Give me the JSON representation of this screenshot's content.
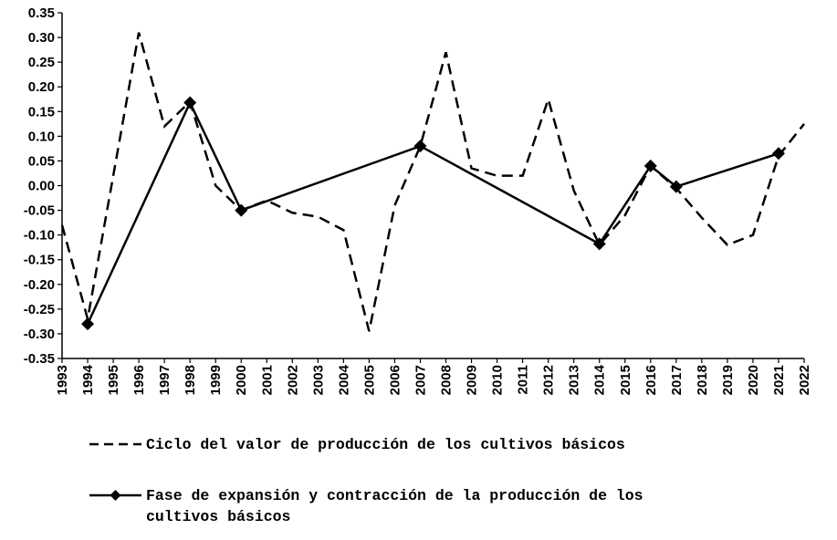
{
  "chart_data": {
    "type": "line",
    "title": "",
    "xlabel": "",
    "ylabel": "",
    "ylim": [
      -0.35,
      0.35
    ],
    "y_ticks": [
      "0.35",
      "0.30",
      "0.25",
      "0.20",
      "0.15",
      "0.10",
      "0.05",
      "0.00",
      "-0.05",
      "-0.10",
      "-0.15",
      "-0.20",
      "-0.25",
      "-0.30",
      "-0.35"
    ],
    "x": [
      "1993",
      "1994",
      "1995",
      "1996",
      "1997",
      "1998",
      "1999",
      "2000",
      "2001",
      "2002",
      "2003",
      "2004",
      "2005",
      "2006",
      "2007",
      "2008",
      "2009",
      "2010",
      "2011",
      "2012",
      "2013",
      "2014",
      "2015",
      "2016",
      "2017",
      "2018",
      "2019",
      "2020",
      "2021",
      "2022"
    ],
    "grid": false,
    "legend_position": "bottom",
    "series": [
      {
        "name": "Ciclo del valor de producción de los cultivos básicos",
        "style": "dashed",
        "values": [
          -0.08,
          -0.27,
          0.02,
          0.31,
          0.12,
          0.17,
          0.0,
          -0.05,
          -0.03,
          -0.055,
          -0.063,
          -0.09,
          -0.295,
          -0.04,
          0.08,
          0.27,
          0.035,
          0.02,
          0.02,
          0.175,
          -0.01,
          -0.12,
          -0.06,
          0.04,
          -0.005,
          -0.065,
          -0.12,
          -0.1,
          0.06,
          0.125
        ]
      },
      {
        "name": "Fase de expansión y contracción de la producción de los cultivos básicos",
        "legend_lines": [
          "Fase de expansión y contracción de la producción de los",
          "cultivos básicos"
        ],
        "style": "solid-diamond",
        "points": [
          {
            "x": "1994",
            "y": -0.28
          },
          {
            "x": "1998",
            "y": 0.168
          },
          {
            "x": "2000",
            "y": -0.05
          },
          {
            "x": "2007",
            "y": 0.08
          },
          {
            "x": "2014",
            "y": -0.118
          },
          {
            "x": "2016",
            "y": 0.04
          },
          {
            "x": "2017",
            "y": -0.002
          },
          {
            "x": "2021",
            "y": 0.065
          }
        ]
      }
    ]
  },
  "colors": {
    "line": "#000000",
    "background": "#ffffff"
  }
}
